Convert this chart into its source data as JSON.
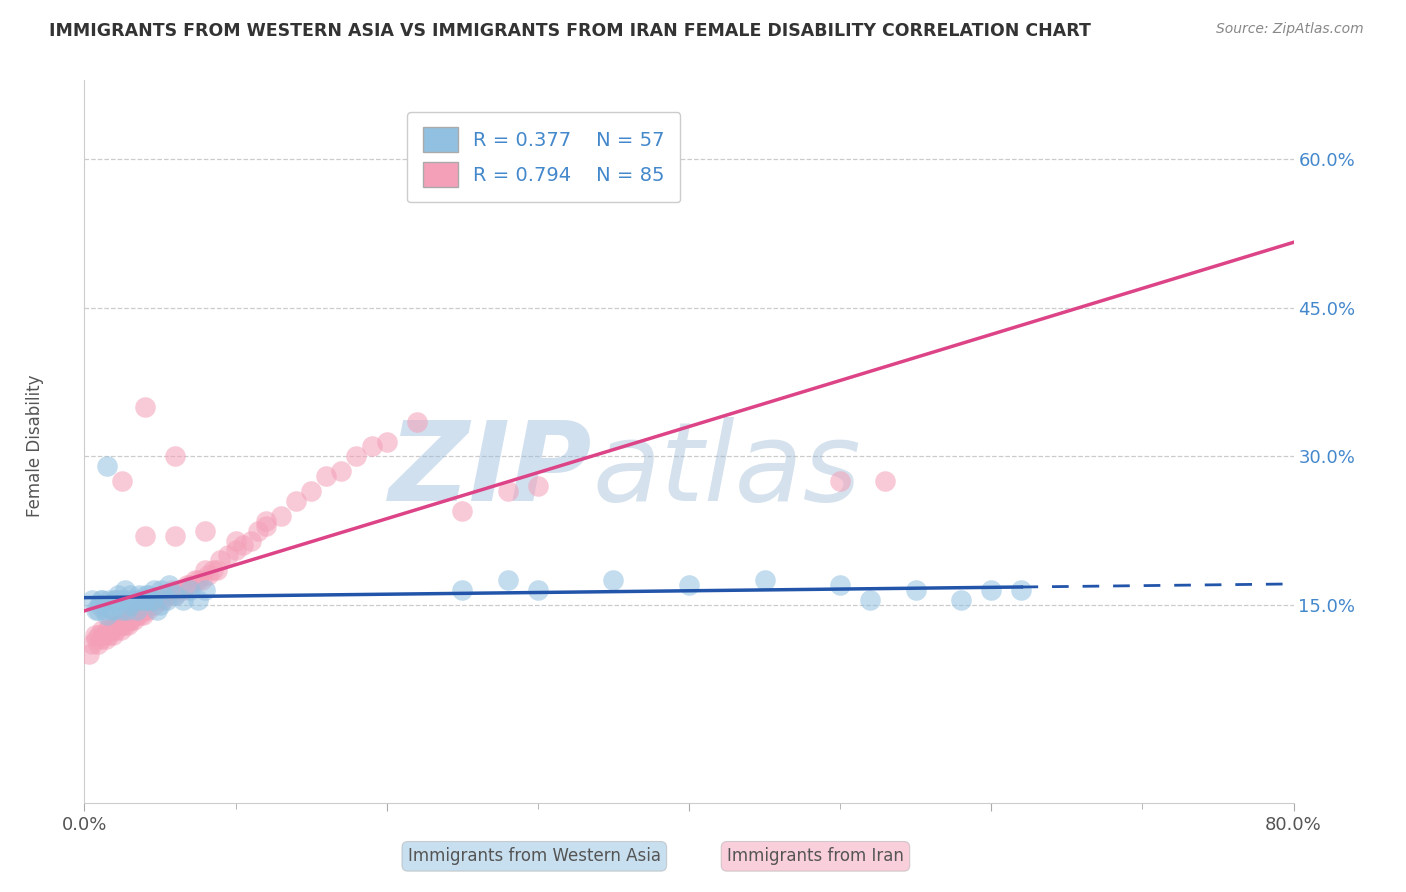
{
  "title": "IMMIGRANTS FROM WESTERN ASIA VS IMMIGRANTS FROM IRAN FEMALE DISABILITY CORRELATION CHART",
  "source": "Source: ZipAtlas.com",
  "ylabel": "Female Disability",
  "xlim": [
    0.0,
    0.8
  ],
  "ylim": [
    -0.05,
    0.68
  ],
  "yticks": [
    0.15,
    0.3,
    0.45,
    0.6
  ],
  "yticklabels": [
    "15.0%",
    "30.0%",
    "45.0%",
    "60.0%"
  ],
  "watermark_zip": "ZIP",
  "watermark_atlas": "atlas",
  "R_blue": 0.377,
  "N_blue": 57,
  "R_pink": 0.794,
  "N_pink": 85,
  "blue_color": "#92C0E0",
  "pink_color": "#F4A0B8",
  "blue_line_color": "#2255AA",
  "pink_line_color": "#DD4488",
  "tick_color": "#4488CC",
  "legend_label_blue": "Immigrants from Western Asia",
  "legend_label_pink": "Immigrants from Iran",
  "blue_scatter_x": [
    0.005,
    0.008,
    0.01,
    0.012,
    0.015,
    0.018,
    0.02,
    0.022,
    0.025,
    0.028,
    0.03,
    0.032,
    0.035,
    0.038,
    0.04,
    0.042,
    0.045,
    0.048,
    0.05,
    0.055,
    0.06,
    0.065,
    0.07,
    0.075,
    0.08,
    0.009,
    0.011,
    0.013,
    0.016,
    0.019,
    0.023,
    0.027,
    0.031,
    0.036,
    0.041,
    0.046,
    0.051,
    0.056,
    0.3,
    0.35,
    0.4,
    0.45,
    0.5,
    0.52,
    0.55,
    0.58,
    0.6,
    0.62,
    0.25,
    0.28,
    0.015,
    0.02,
    0.025,
    0.03,
    0.035,
    0.04,
    0.045
  ],
  "blue_scatter_y": [
    0.155,
    0.145,
    0.15,
    0.155,
    0.14,
    0.145,
    0.155,
    0.16,
    0.155,
    0.145,
    0.15,
    0.155,
    0.145,
    0.155,
    0.155,
    0.16,
    0.155,
    0.145,
    0.15,
    0.155,
    0.16,
    0.155,
    0.165,
    0.155,
    0.165,
    0.145,
    0.155,
    0.145,
    0.155,
    0.145,
    0.155,
    0.165,
    0.155,
    0.16,
    0.16,
    0.165,
    0.165,
    0.17,
    0.165,
    0.175,
    0.17,
    0.175,
    0.17,
    0.155,
    0.165,
    0.155,
    0.165,
    0.165,
    0.165,
    0.175,
    0.29,
    0.155,
    0.145,
    0.16,
    0.155,
    0.155,
    0.155
  ],
  "pink_scatter_x": [
    0.003,
    0.005,
    0.007,
    0.008,
    0.009,
    0.01,
    0.011,
    0.012,
    0.013,
    0.014,
    0.015,
    0.016,
    0.017,
    0.018,
    0.019,
    0.02,
    0.021,
    0.022,
    0.023,
    0.024,
    0.025,
    0.026,
    0.027,
    0.028,
    0.029,
    0.03,
    0.031,
    0.032,
    0.033,
    0.034,
    0.035,
    0.036,
    0.037,
    0.038,
    0.039,
    0.04,
    0.042,
    0.044,
    0.046,
    0.048,
    0.05,
    0.052,
    0.055,
    0.058,
    0.06,
    0.062,
    0.065,
    0.068,
    0.07,
    0.073,
    0.075,
    0.078,
    0.08,
    0.082,
    0.085,
    0.088,
    0.09,
    0.095,
    0.1,
    0.105,
    0.11,
    0.115,
    0.12,
    0.13,
    0.14,
    0.15,
    0.16,
    0.17,
    0.18,
    0.19,
    0.2,
    0.22,
    0.04,
    0.06,
    0.08,
    0.1,
    0.12,
    0.25,
    0.28,
    0.3,
    0.5,
    0.53,
    0.025,
    0.04,
    0.06
  ],
  "pink_scatter_y": [
    0.1,
    0.11,
    0.12,
    0.115,
    0.11,
    0.12,
    0.115,
    0.125,
    0.12,
    0.115,
    0.125,
    0.12,
    0.13,
    0.125,
    0.12,
    0.13,
    0.125,
    0.13,
    0.13,
    0.125,
    0.13,
    0.135,
    0.13,
    0.135,
    0.13,
    0.135,
    0.135,
    0.14,
    0.135,
    0.14,
    0.14,
    0.145,
    0.14,
    0.145,
    0.14,
    0.145,
    0.145,
    0.155,
    0.15,
    0.155,
    0.155,
    0.155,
    0.16,
    0.165,
    0.16,
    0.165,
    0.165,
    0.17,
    0.17,
    0.175,
    0.175,
    0.175,
    0.185,
    0.18,
    0.185,
    0.185,
    0.195,
    0.2,
    0.205,
    0.21,
    0.215,
    0.225,
    0.23,
    0.24,
    0.255,
    0.265,
    0.28,
    0.285,
    0.3,
    0.31,
    0.315,
    0.335,
    0.22,
    0.22,
    0.225,
    0.215,
    0.235,
    0.245,
    0.265,
    0.27,
    0.275,
    0.275,
    0.275,
    0.35,
    0.3
  ]
}
